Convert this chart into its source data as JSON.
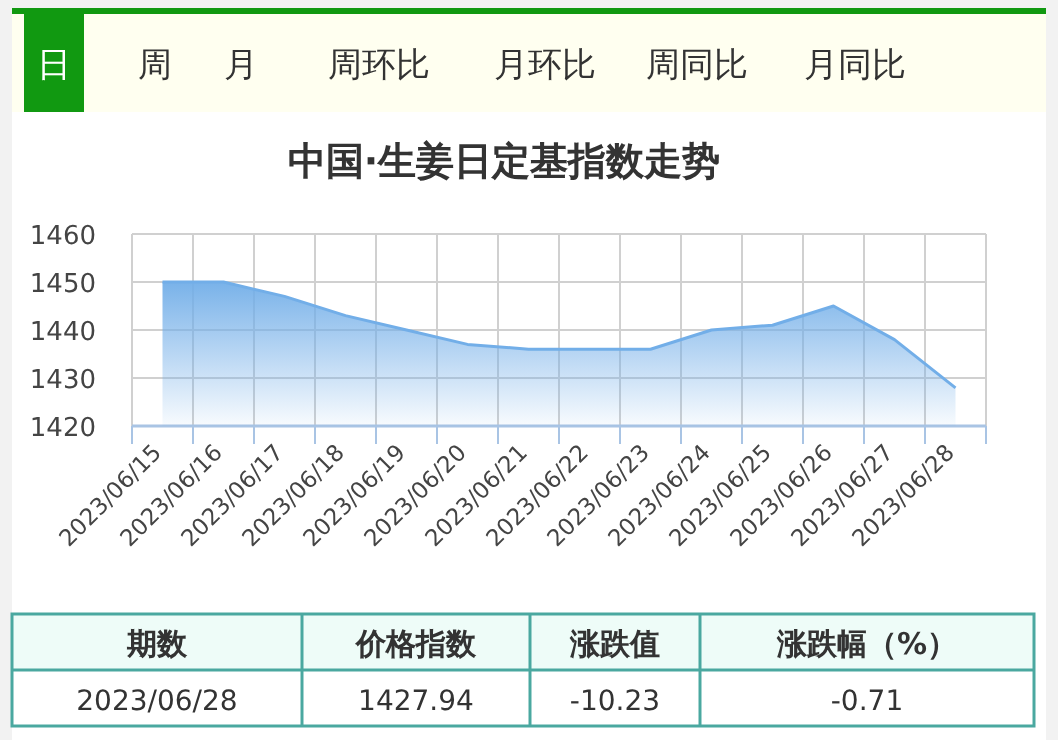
{
  "chart_data": {
    "type": "area",
    "title": "中国·生姜日定基指数走势",
    "categories": [
      "2023/06/15",
      "2023/06/16",
      "2023/06/17",
      "2023/06/18",
      "2023/06/19",
      "2023/06/20",
      "2023/06/21",
      "2023/06/22",
      "2023/06/23",
      "2023/06/24",
      "2023/06/25",
      "2023/06/26",
      "2023/06/27",
      "2023/06/28"
    ],
    "series": [
      {
        "color": "#72aee8",
        "values": [
          1450,
          1450,
          1447,
          1443,
          1440,
          1437,
          1436,
          1436,
          1436,
          1440,
          1441,
          1445,
          1438,
          1427.94
        ]
      }
    ],
    "ylim": [
      1420,
      1460
    ],
    "yticks": [
      1420,
      1430,
      1440,
      1450,
      1460
    ],
    "grid": true,
    "annotations": [
      "日",
      "周",
      "月",
      "周环比",
      "月环比",
      "周同比",
      "月同比",
      "期数",
      "价格指数",
      "涨跌值",
      "涨跌幅（%）",
      "2023/06/28",
      "1427.94",
      "-10.23",
      "-0.71"
    ]
  }
}
